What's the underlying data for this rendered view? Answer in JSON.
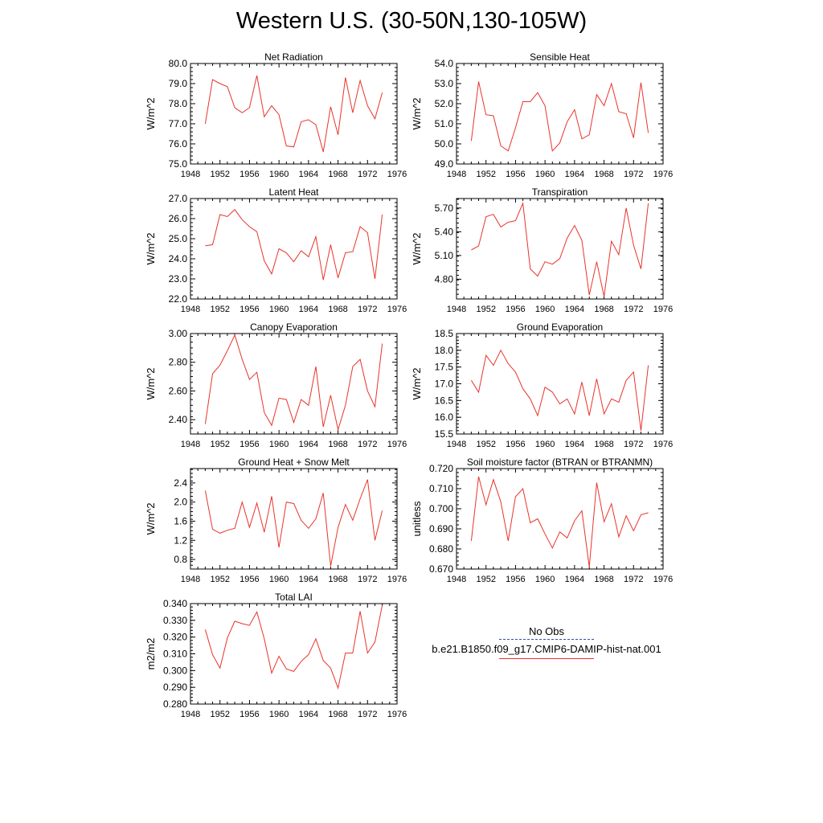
{
  "title": "Western U.S. (30-50N,130-105W)",
  "legend": {
    "obs_label": "No Obs",
    "obs_color": "#3b4aa0",
    "model_label": "b.e21.B1850.f09_g17.CMIP6-DAMIP-hist-nat.001",
    "model_color": "#e8342c"
  },
  "chart_data": [
    {
      "type": "line",
      "title": "Net Radiation",
      "ylabel": "W/m^2",
      "xlim": [
        1948,
        1976
      ],
      "xticks": [
        1948,
        1952,
        1956,
        1960,
        1964,
        1968,
        1972,
        1976
      ],
      "ylim": [
        75.0,
        80.0
      ],
      "yticks": [
        75.0,
        76.0,
        77.0,
        78.0,
        79.0,
        80.0
      ],
      "ytick_decimals": 1,
      "x": [
        1950,
        1951,
        1952,
        1953,
        1954,
        1955,
        1956,
        1957,
        1958,
        1959,
        1960,
        1961,
        1962,
        1963,
        1964,
        1965,
        1966,
        1967,
        1968,
        1969,
        1970,
        1971,
        1972,
        1973,
        1974
      ],
      "values": [
        77.0,
        79.2,
        79.0,
        78.85,
        77.8,
        77.55,
        77.8,
        79.4,
        77.35,
        77.9,
        77.45,
        75.9,
        75.85,
        77.1,
        77.2,
        76.95,
        75.6,
        77.85,
        76.45,
        79.3,
        77.55,
        79.15,
        77.9,
        77.25,
        78.55
      ]
    },
    {
      "type": "line",
      "title": "Sensible Heat",
      "ylabel": "W/m^2",
      "xlim": [
        1948,
        1976
      ],
      "xticks": [
        1948,
        1952,
        1956,
        1960,
        1964,
        1968,
        1972,
        1976
      ],
      "ylim": [
        49.0,
        54.0
      ],
      "yticks": [
        49.0,
        50.0,
        51.0,
        52.0,
        53.0,
        54.0
      ],
      "ytick_decimals": 1,
      "x": [
        1950,
        1951,
        1952,
        1953,
        1954,
        1955,
        1956,
        1957,
        1958,
        1959,
        1960,
        1961,
        1962,
        1963,
        1964,
        1965,
        1966,
        1967,
        1968,
        1969,
        1970,
        1971,
        1972,
        1973,
        1974
      ],
      "values": [
        50.15,
        53.1,
        51.45,
        51.4,
        49.9,
        49.65,
        50.8,
        52.1,
        52.1,
        52.55,
        51.9,
        49.65,
        50.05,
        51.1,
        51.7,
        50.25,
        50.45,
        52.45,
        51.9,
        53.0,
        51.6,
        51.5,
        50.3,
        53.05,
        50.55
      ]
    },
    {
      "type": "line",
      "title": "Latent Heat",
      "ylabel": "W/m^2",
      "xlim": [
        1948,
        1976
      ],
      "xticks": [
        1948,
        1952,
        1956,
        1960,
        1964,
        1968,
        1972,
        1976
      ],
      "ylim": [
        22.0,
        27.0
      ],
      "yticks": [
        22.0,
        23.0,
        24.0,
        25.0,
        26.0,
        27.0
      ],
      "ytick_decimals": 1,
      "x": [
        1950,
        1951,
        1952,
        1953,
        1954,
        1955,
        1956,
        1957,
        1958,
        1959,
        1960,
        1961,
        1962,
        1963,
        1964,
        1965,
        1966,
        1967,
        1968,
        1969,
        1970,
        1971,
        1972,
        1973,
        1974
      ],
      "values": [
        24.65,
        24.7,
        26.2,
        26.1,
        26.45,
        25.95,
        25.6,
        25.35,
        23.9,
        23.25,
        24.5,
        24.3,
        23.85,
        24.4,
        24.1,
        25.1,
        22.95,
        24.7,
        23.05,
        24.3,
        24.35,
        25.6,
        25.3,
        23.0,
        26.2
      ]
    },
    {
      "type": "line",
      "title": "Transpiration",
      "ylabel": "W/m^2",
      "xlim": [
        1948,
        1976
      ],
      "xticks": [
        1948,
        1952,
        1956,
        1960,
        1964,
        1968,
        1972,
        1976
      ],
      "ylim": [
        4.55,
        5.82
      ],
      "yticks": [
        4.8,
        5.1,
        5.4,
        5.7
      ],
      "ytick_decimals": 2,
      "x": [
        1950,
        1951,
        1952,
        1953,
        1954,
        1955,
        1956,
        1957,
        1958,
        1959,
        1960,
        1961,
        1962,
        1963,
        1964,
        1965,
        1966,
        1967,
        1968,
        1969,
        1970,
        1971,
        1972,
        1973,
        1974
      ],
      "values": [
        5.17,
        5.22,
        5.59,
        5.62,
        5.46,
        5.52,
        5.54,
        5.76,
        4.93,
        4.84,
        5.02,
        4.99,
        5.06,
        5.32,
        5.48,
        5.29,
        4.6,
        5.02,
        4.58,
        5.28,
        5.11,
        5.7,
        5.23,
        4.93,
        5.76
      ]
    },
    {
      "type": "line",
      "title": "Canopy Evaporation",
      "ylabel": "W/m^2",
      "xlim": [
        1948,
        1976
      ],
      "xticks": [
        1948,
        1952,
        1956,
        1960,
        1964,
        1968,
        1972,
        1976
      ],
      "ylim": [
        2.3,
        3.0
      ],
      "yticks": [
        2.4,
        2.6,
        2.8,
        3.0
      ],
      "ytick_decimals": 2,
      "x": [
        1950,
        1951,
        1952,
        1953,
        1954,
        1955,
        1956,
        1957,
        1958,
        1959,
        1960,
        1961,
        1962,
        1963,
        1964,
        1965,
        1966,
        1967,
        1968,
        1969,
        1970,
        1971,
        1972,
        1973,
        1974
      ],
      "values": [
        2.37,
        2.72,
        2.78,
        2.88,
        2.99,
        2.82,
        2.68,
        2.73,
        2.45,
        2.36,
        2.55,
        2.54,
        2.38,
        2.54,
        2.5,
        2.77,
        2.35,
        2.57,
        2.33,
        2.5,
        2.77,
        2.82,
        2.6,
        2.49,
        2.93
      ]
    },
    {
      "type": "line",
      "title": "Ground Evaporation",
      "ylabel": "W/m^2",
      "xlim": [
        1948,
        1976
      ],
      "xticks": [
        1948,
        1952,
        1956,
        1960,
        1964,
        1968,
        1972,
        1976
      ],
      "ylim": [
        15.5,
        18.5
      ],
      "yticks": [
        15.5,
        16.0,
        16.5,
        17.0,
        17.5,
        18.0,
        18.5
      ],
      "ytick_decimals": 1,
      "x": [
        1950,
        1951,
        1952,
        1953,
        1954,
        1955,
        1956,
        1957,
        1958,
        1959,
        1960,
        1961,
        1962,
        1963,
        1964,
        1965,
        1966,
        1967,
        1968,
        1969,
        1970,
        1971,
        1972,
        1973,
        1974
      ],
      "values": [
        17.1,
        16.75,
        17.85,
        17.55,
        18.0,
        17.6,
        17.35,
        16.85,
        16.55,
        16.05,
        16.9,
        16.75,
        16.4,
        16.55,
        16.1,
        17.05,
        16.05,
        17.15,
        16.1,
        16.55,
        16.45,
        17.1,
        17.35,
        15.6,
        17.55
      ]
    },
    {
      "type": "line",
      "title": "Ground Heat + Snow Melt",
      "ylabel": "W/m^2",
      "xlim": [
        1948,
        1976
      ],
      "xticks": [
        1948,
        1952,
        1956,
        1960,
        1964,
        1968,
        1972,
        1976
      ],
      "ylim": [
        0.6,
        2.7
      ],
      "yticks": [
        0.8,
        1.2,
        1.6,
        2.0,
        2.4
      ],
      "ytick_decimals": 1,
      "x": [
        1950,
        1951,
        1952,
        1953,
        1954,
        1955,
        1956,
        1957,
        1958,
        1959,
        1960,
        1961,
        1962,
        1963,
        1964,
        1965,
        1966,
        1967,
        1968,
        1969,
        1970,
        1971,
        1972,
        1973,
        1974
      ],
      "values": [
        2.24,
        1.43,
        1.35,
        1.41,
        1.45,
        2.0,
        1.47,
        1.98,
        1.37,
        2.12,
        1.05,
        2.0,
        1.97,
        1.62,
        1.45,
        1.65,
        2.19,
        0.66,
        1.47,
        1.95,
        1.62,
        2.07,
        2.47,
        1.2,
        1.82
      ]
    },
    {
      "type": "line",
      "title": "Soil moisture factor (BTRAN or BTRANMN)",
      "ylabel": "unitless",
      "xlim": [
        1948,
        1976
      ],
      "xticks": [
        1948,
        1952,
        1956,
        1960,
        1964,
        1968,
        1972,
        1976
      ],
      "ylim": [
        0.67,
        0.72
      ],
      "yticks": [
        0.67,
        0.68,
        0.69,
        0.7,
        0.71,
        0.72
      ],
      "ytick_decimals": 3,
      "x": [
        1950,
        1951,
        1952,
        1953,
        1954,
        1955,
        1956,
        1957,
        1958,
        1959,
        1960,
        1961,
        1962,
        1963,
        1964,
        1965,
        1966,
        1967,
        1968,
        1969,
        1970,
        1971,
        1972,
        1973,
        1974
      ],
      "values": [
        0.684,
        0.716,
        0.702,
        0.7145,
        0.7035,
        0.684,
        0.706,
        0.71,
        0.693,
        0.695,
        0.6875,
        0.6805,
        0.6885,
        0.6855,
        0.694,
        0.699,
        0.671,
        0.713,
        0.6935,
        0.7025,
        0.686,
        0.6965,
        0.689,
        0.697,
        0.698
      ]
    },
    {
      "type": "line",
      "title": "Total LAI",
      "ylabel": "m2/m2",
      "xlim": [
        1948,
        1976
      ],
      "xticks": [
        1948,
        1952,
        1956,
        1960,
        1964,
        1968,
        1972,
        1976
      ],
      "ylim": [
        0.28,
        0.34
      ],
      "yticks": [
        0.28,
        0.29,
        0.3,
        0.31,
        0.32,
        0.33,
        0.34
      ],
      "ytick_decimals": 3,
      "x": [
        1950,
        1951,
        1952,
        1953,
        1954,
        1955,
        1956,
        1957,
        1958,
        1959,
        1960,
        1961,
        1962,
        1963,
        1964,
        1965,
        1966,
        1967,
        1968,
        1969,
        1970,
        1971,
        1972,
        1973,
        1974
      ],
      "values": [
        0.3245,
        0.3095,
        0.3015,
        0.3195,
        0.3295,
        0.328,
        0.327,
        0.335,
        0.319,
        0.2985,
        0.3085,
        0.301,
        0.2995,
        0.3055,
        0.3095,
        0.319,
        0.306,
        0.3015,
        0.2895,
        0.3105,
        0.3105,
        0.3355,
        0.3105,
        0.317,
        0.339
      ]
    }
  ]
}
